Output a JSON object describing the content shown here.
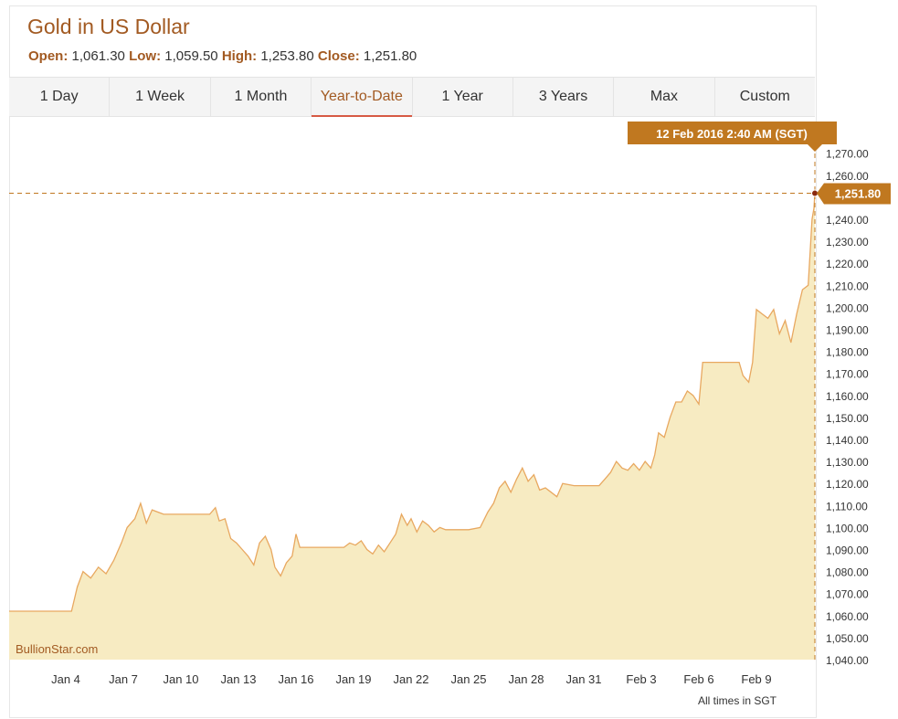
{
  "header": {
    "title": "Gold in US Dollar",
    "open_label": "Open:",
    "open_value": "1,061.30",
    "low_label": "Low:",
    "low_value": "1,059.50",
    "high_label": "High:",
    "high_value": "1,253.80",
    "close_label": "Close:",
    "close_value": "1,251.80"
  },
  "tabs": [
    {
      "label": "1 Day"
    },
    {
      "label": "1 Week"
    },
    {
      "label": "1 Month"
    },
    {
      "label": "Year-to-Date",
      "active": true
    },
    {
      "label": "1 Year"
    },
    {
      "label": "3 Years"
    },
    {
      "label": "Max"
    },
    {
      "label": "Custom"
    }
  ],
  "tooltip": {
    "date_label": "12 Feb 2016 2:40 AM (SGT)",
    "price_label": "1,251.80"
  },
  "watermark": "BullionStar.com",
  "footnote": "All times in SGT",
  "colors": {
    "line": "#e8a860",
    "fill": "#f7ebc2",
    "accent": "#c07820",
    "title": "#a25a22",
    "active_tab": "#d65a44"
  },
  "chart_data": {
    "type": "area",
    "title": "Gold in US Dollar",
    "xlabel": "",
    "ylabel": "",
    "ylim": [
      1040,
      1270
    ],
    "yticks": [
      1040,
      1050,
      1060,
      1070,
      1080,
      1090,
      1100,
      1110,
      1120,
      1130,
      1140,
      1150,
      1160,
      1170,
      1180,
      1190,
      1200,
      1210,
      1220,
      1230,
      1240,
      1250,
      1260,
      1270
    ],
    "ytick_labels": [
      "1,040.00",
      "1,050.00",
      "1,060.00",
      "1,070.00",
      "1,080.00",
      "1,090.00",
      "1,100.00",
      "1,110.00",
      "1,120.00",
      "1,130.00",
      "1,140.00",
      "1,150.00",
      "1,160.00",
      "1,170.00",
      "1,180.00",
      "1,190.00",
      "1,200.00",
      "1,210.00",
      "1,220.00",
      "1,230.00",
      "1,240.00",
      "1,250.00",
      "1,260.00",
      "1,270.00"
    ],
    "xticks": [
      {
        "label": "Jan 4",
        "day": 4
      },
      {
        "label": "Jan 7",
        "day": 7
      },
      {
        "label": "Jan 10",
        "day": 10
      },
      {
        "label": "Jan 13",
        "day": 13
      },
      {
        "label": "Jan 16",
        "day": 16
      },
      {
        "label": "Jan 19",
        "day": 19
      },
      {
        "label": "Jan 22",
        "day": 22
      },
      {
        "label": "Jan 25",
        "day": 25
      },
      {
        "label": "Jan 28",
        "day": 28
      },
      {
        "label": "Jan 31",
        "day": 31
      },
      {
        "label": "Feb 3",
        "day": 34
      },
      {
        "label": "Feb 6",
        "day": 37
      },
      {
        "label": "Feb 9",
        "day": 40
      }
    ],
    "xlim": [
      1,
      43.1
    ],
    "series": [
      {
        "points": [
          [
            1.0,
            1062
          ],
          [
            4.3,
            1062
          ],
          [
            4.6,
            1073
          ],
          [
            4.9,
            1080
          ],
          [
            5.3,
            1077
          ],
          [
            5.7,
            1082
          ],
          [
            6.1,
            1079
          ],
          [
            6.5,
            1085
          ],
          [
            6.9,
            1093
          ],
          [
            7.2,
            1100
          ],
          [
            7.6,
            1104
          ],
          [
            7.9,
            1111
          ],
          [
            8.2,
            1102
          ],
          [
            8.5,
            1108
          ],
          [
            8.8,
            1107
          ],
          [
            9.1,
            1106
          ],
          [
            9.4,
            1106
          ],
          [
            10.0,
            1106
          ],
          [
            11.0,
            1106
          ],
          [
            11.5,
            1106
          ],
          [
            11.8,
            1109
          ],
          [
            12.0,
            1103
          ],
          [
            12.3,
            1104
          ],
          [
            12.6,
            1095
          ],
          [
            12.9,
            1093
          ],
          [
            13.2,
            1090
          ],
          [
            13.5,
            1087
          ],
          [
            13.8,
            1083
          ],
          [
            14.1,
            1093
          ],
          [
            14.4,
            1096
          ],
          [
            14.7,
            1090
          ],
          [
            14.9,
            1082
          ],
          [
            15.2,
            1078
          ],
          [
            15.5,
            1084
          ],
          [
            15.8,
            1087
          ],
          [
            16.0,
            1097
          ],
          [
            16.2,
            1091
          ],
          [
            17.0,
            1091
          ],
          [
            18.0,
            1091
          ],
          [
            18.5,
            1091
          ],
          [
            18.8,
            1093
          ],
          [
            19.1,
            1092
          ],
          [
            19.4,
            1094
          ],
          [
            19.7,
            1090
          ],
          [
            20.0,
            1088
          ],
          [
            20.3,
            1092
          ],
          [
            20.6,
            1089
          ],
          [
            20.9,
            1093
          ],
          [
            21.2,
            1097
          ],
          [
            21.5,
            1106
          ],
          [
            21.8,
            1101
          ],
          [
            22.0,
            1104
          ],
          [
            22.3,
            1098
          ],
          [
            22.6,
            1103
          ],
          [
            22.9,
            1101
          ],
          [
            23.2,
            1098
          ],
          [
            23.5,
            1100
          ],
          [
            23.8,
            1099
          ],
          [
            24.0,
            1099
          ],
          [
            25.0,
            1099
          ],
          [
            25.6,
            1100
          ],
          [
            26.0,
            1107
          ],
          [
            26.3,
            1111
          ],
          [
            26.6,
            1118
          ],
          [
            26.9,
            1121
          ],
          [
            27.2,
            1116
          ],
          [
            27.5,
            1122
          ],
          [
            27.8,
            1127
          ],
          [
            28.1,
            1121
          ],
          [
            28.4,
            1124
          ],
          [
            28.7,
            1117
          ],
          [
            29.0,
            1118
          ],
          [
            29.3,
            1116
          ],
          [
            29.6,
            1114
          ],
          [
            29.9,
            1120
          ],
          [
            30.5,
            1119
          ],
          [
            31.0,
            1119
          ],
          [
            31.8,
            1119
          ],
          [
            32.1,
            1122
          ],
          [
            32.4,
            1125
          ],
          [
            32.7,
            1130
          ],
          [
            33.0,
            1127
          ],
          [
            33.3,
            1126
          ],
          [
            33.6,
            1129
          ],
          [
            33.9,
            1126
          ],
          [
            34.2,
            1130
          ],
          [
            34.5,
            1127
          ],
          [
            34.7,
            1133
          ],
          [
            34.9,
            1143
          ],
          [
            35.2,
            1141
          ],
          [
            35.5,
            1150
          ],
          [
            35.8,
            1157
          ],
          [
            36.1,
            1157
          ],
          [
            36.4,
            1162
          ],
          [
            36.7,
            1160
          ],
          [
            37.0,
            1156
          ],
          [
            37.2,
            1175
          ],
          [
            37.6,
            1175
          ],
          [
            38.0,
            1175
          ],
          [
            39.1,
            1175
          ],
          [
            39.3,
            1169
          ],
          [
            39.6,
            1166
          ],
          [
            39.8,
            1175
          ],
          [
            40.0,
            1199
          ],
          [
            40.3,
            1197
          ],
          [
            40.6,
            1195
          ],
          [
            40.9,
            1199
          ],
          [
            41.2,
            1188
          ],
          [
            41.5,
            1194
          ],
          [
            41.8,
            1184
          ],
          [
            42.1,
            1197
          ],
          [
            42.4,
            1208
          ],
          [
            42.7,
            1210
          ],
          [
            42.9,
            1240
          ],
          [
            43.0,
            1245
          ],
          [
            43.1,
            1252
          ]
        ]
      }
    ],
    "last_value": 1251.8
  }
}
